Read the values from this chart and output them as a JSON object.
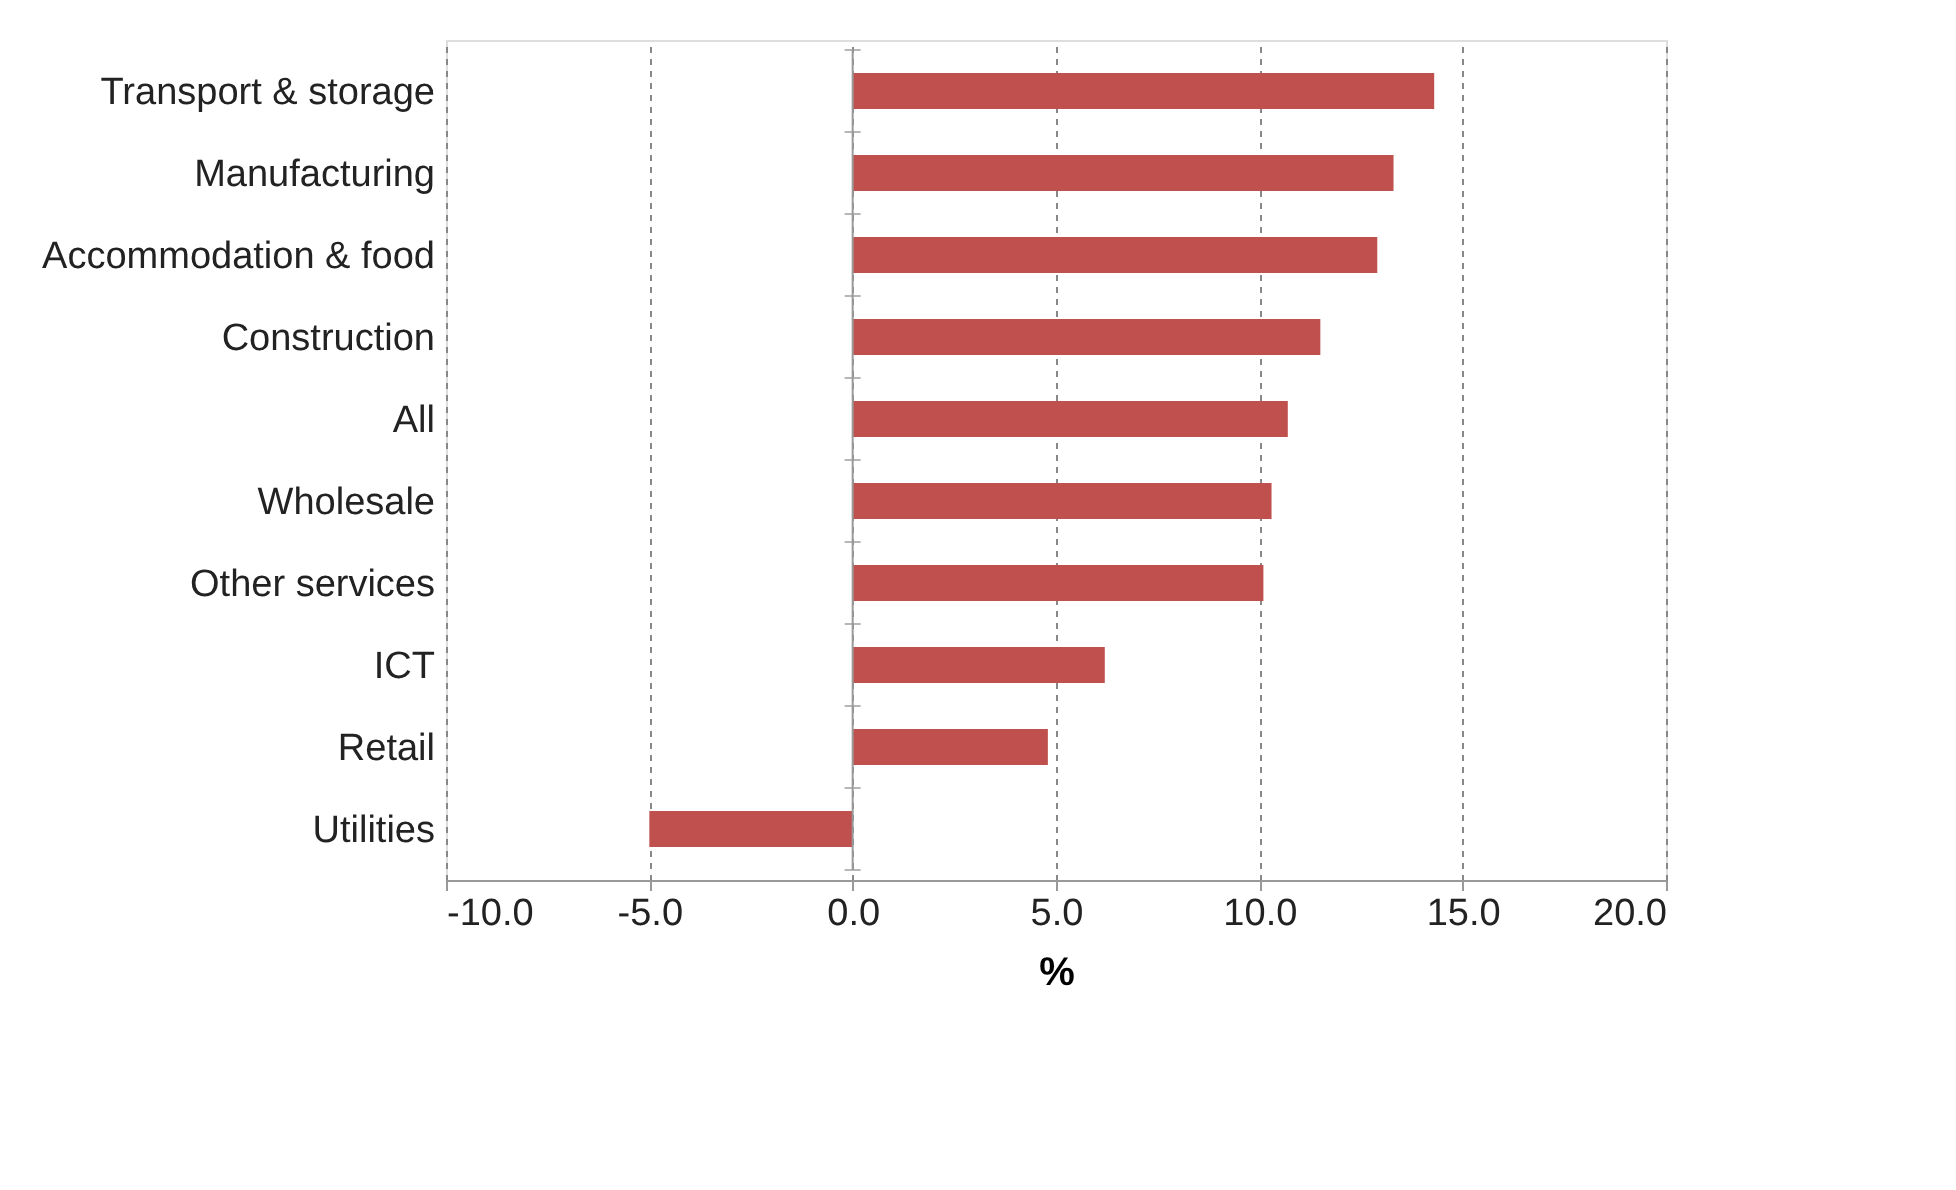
{
  "chart_data": {
    "type": "bar",
    "orientation": "horizontal",
    "xlabel": "%",
    "categories": [
      "Transport & storage",
      "Manufacturing",
      "Accommodation & food",
      "Construction",
      "All",
      "Wholesale",
      "Other services",
      "ICT",
      "Retail",
      "Utilities"
    ],
    "series": [
      {
        "color": "#c0504d",
        "values": [
          14.3,
          13.3,
          12.9,
          11.5,
          10.7,
          10.3,
          10.1,
          6.2,
          4.8,
          -5.0
        ]
      }
    ],
    "xlim": [
      -10,
      20
    ],
    "xticks": [
      {
        "value": -10,
        "label": "-10.0"
      },
      {
        "value": -5,
        "label": "-5.0"
      },
      {
        "value": 0,
        "label": "0.0"
      },
      {
        "value": 5,
        "label": "5.0"
      },
      {
        "value": 10,
        "label": "10.0"
      },
      {
        "value": 15,
        "label": "15.0"
      },
      {
        "value": 20,
        "label": "20.0"
      }
    ],
    "grid": "x"
  }
}
